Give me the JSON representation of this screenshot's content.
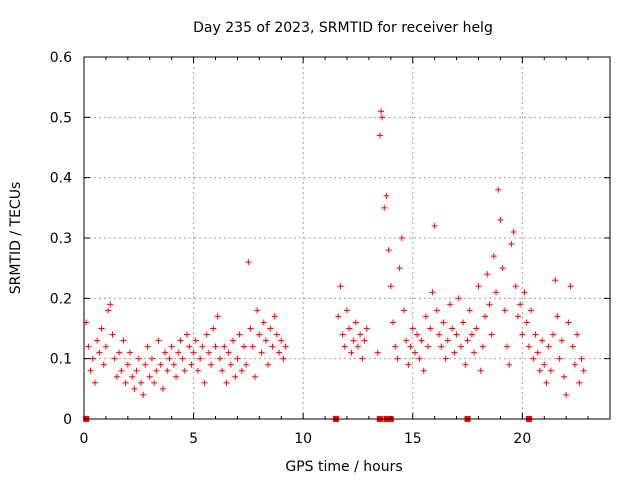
{
  "chart_data": {
    "type": "scatter",
    "title": "Day 235 of 2023, SRMTID for receiver helg",
    "xlabel": "GPS time / hours",
    "ylabel": "SRMTID / TECUs",
    "xlim": [
      0,
      24
    ],
    "ylim": [
      0,
      0.6
    ],
    "x_ticks": [
      0,
      5,
      10,
      15,
      20
    ],
    "x_tick_labels": [
      "0",
      "5",
      "10",
      "15",
      "20"
    ],
    "y_ticks": [
      0,
      0.1,
      0.2,
      0.3,
      0.4,
      0.5,
      0.6
    ],
    "y_tick_labels": [
      "0",
      "0.1",
      "0.2",
      "0.3",
      "0.4",
      "0.5",
      "0.6"
    ],
    "grid": true,
    "marker": "+",
    "color": "#ff0000",
    "series": [
      {
        "name": "SRMTID",
        "points": [
          [
            0.1,
            0.16
          ],
          [
            0.2,
            0.12
          ],
          [
            0.3,
            0.08
          ],
          [
            0.4,
            0.1
          ],
          [
            0.5,
            0.06
          ],
          [
            0.6,
            0.13
          ],
          [
            0.7,
            0.11
          ],
          [
            0.8,
            0.15
          ],
          [
            0.9,
            0.09
          ],
          [
            1.0,
            0.12
          ],
          [
            1.1,
            0.18
          ],
          [
            1.2,
            0.19
          ],
          [
            1.3,
            0.14
          ],
          [
            1.4,
            0.1
          ],
          [
            1.5,
            0.07
          ],
          [
            1.6,
            0.11
          ],
          [
            1.7,
            0.08
          ],
          [
            1.8,
            0.13
          ],
          [
            1.9,
            0.06
          ],
          [
            2.0,
            0.09
          ],
          [
            2.1,
            0.11
          ],
          [
            2.2,
            0.07
          ],
          [
            2.3,
            0.05
          ],
          [
            2.4,
            0.08
          ],
          [
            2.5,
            0.1
          ],
          [
            2.6,
            0.06
          ],
          [
            2.7,
            0.04
          ],
          [
            2.8,
            0.09
          ],
          [
            2.9,
            0.12
          ],
          [
            3.0,
            0.07
          ],
          [
            3.1,
            0.1
          ],
          [
            3.2,
            0.06
          ],
          [
            3.3,
            0.08
          ],
          [
            3.4,
            0.13
          ],
          [
            3.5,
            0.09
          ],
          [
            3.6,
            0.05
          ],
          [
            3.7,
            0.11
          ],
          [
            3.8,
            0.08
          ],
          [
            3.9,
            0.1
          ],
          [
            4.0,
            0.12
          ],
          [
            4.1,
            0.09
          ],
          [
            4.2,
            0.07
          ],
          [
            4.3,
            0.11
          ],
          [
            4.4,
            0.13
          ],
          [
            4.5,
            0.1
          ],
          [
            4.6,
            0.08
          ],
          [
            4.7,
            0.14
          ],
          [
            4.8,
            0.12
          ],
          [
            4.9,
            0.09
          ],
          [
            5.0,
            0.11
          ],
          [
            5.1,
            0.13
          ],
          [
            5.2,
            0.08
          ],
          [
            5.3,
            0.1
          ],
          [
            5.4,
            0.12
          ],
          [
            5.5,
            0.06
          ],
          [
            5.6,
            0.14
          ],
          [
            5.7,
            0.11
          ],
          [
            5.8,
            0.09
          ],
          [
            5.9,
            0.15
          ],
          [
            6.0,
            0.12
          ],
          [
            6.1,
            0.17
          ],
          [
            6.2,
            0.1
          ],
          [
            6.3,
            0.08
          ],
          [
            6.4,
            0.12
          ],
          [
            6.5,
            0.06
          ],
          [
            6.6,
            0.11
          ],
          [
            6.7,
            0.09
          ],
          [
            6.8,
            0.13
          ],
          [
            6.9,
            0.07
          ],
          [
            7.0,
            0.1
          ],
          [
            7.1,
            0.14
          ],
          [
            7.2,
            0.08
          ],
          [
            7.3,
            0.12
          ],
          [
            7.4,
            0.09
          ],
          [
            7.5,
            0.26
          ],
          [
            7.6,
            0.15
          ],
          [
            7.7,
            0.12
          ],
          [
            7.8,
            0.07
          ],
          [
            7.9,
            0.18
          ],
          [
            8.0,
            0.14
          ],
          [
            8.1,
            0.11
          ],
          [
            8.2,
            0.16
          ],
          [
            8.3,
            0.13
          ],
          [
            8.4,
            0.09
          ],
          [
            8.5,
            0.15
          ],
          [
            8.6,
            0.12
          ],
          [
            8.7,
            0.17
          ],
          [
            8.8,
            0.14
          ],
          [
            8.9,
            0.11
          ],
          [
            9.0,
            0.13
          ],
          [
            9.1,
            0.1
          ],
          [
            9.2,
            0.12
          ],
          [
            11.6,
            0.17
          ],
          [
            11.7,
            0.22
          ],
          [
            11.8,
            0.14
          ],
          [
            11.9,
            0.12
          ],
          [
            12.0,
            0.18
          ],
          [
            12.1,
            0.15
          ],
          [
            12.2,
            0.11
          ],
          [
            12.3,
            0.13
          ],
          [
            12.4,
            0.16
          ],
          [
            12.5,
            0.12
          ],
          [
            12.6,
            0.14
          ],
          [
            12.7,
            0.1
          ],
          [
            12.8,
            0.13
          ],
          [
            12.9,
            0.15
          ],
          [
            13.4,
            0.11
          ],
          [
            13.5,
            0.47
          ],
          [
            13.55,
            0.51
          ],
          [
            13.6,
            0.5
          ],
          [
            13.7,
            0.35
          ],
          [
            13.8,
            0.37
          ],
          [
            13.9,
            0.28
          ],
          [
            14.0,
            0.22
          ],
          [
            14.1,
            0.16
          ],
          [
            14.2,
            0.12
          ],
          [
            14.3,
            0.1
          ],
          [
            14.4,
            0.25
          ],
          [
            14.5,
            0.3
          ],
          [
            14.6,
            0.18
          ],
          [
            14.7,
            0.13
          ],
          [
            14.8,
            0.09
          ],
          [
            14.9,
            0.12
          ],
          [
            15.0,
            0.15
          ],
          [
            15.1,
            0.11
          ],
          [
            15.2,
            0.14
          ],
          [
            15.3,
            0.1
          ],
          [
            15.4,
            0.13
          ],
          [
            15.5,
            0.08
          ],
          [
            15.6,
            0.17
          ],
          [
            15.7,
            0.12
          ],
          [
            15.8,
            0.15
          ],
          [
            15.9,
            0.21
          ],
          [
            16.0,
            0.32
          ],
          [
            16.1,
            0.18
          ],
          [
            16.2,
            0.14
          ],
          [
            16.3,
            0.12
          ],
          [
            16.4,
            0.16
          ],
          [
            16.5,
            0.1
          ],
          [
            16.6,
            0.13
          ],
          [
            16.7,
            0.19
          ],
          [
            16.8,
            0.15
          ],
          [
            16.9,
            0.11
          ],
          [
            17.0,
            0.14
          ],
          [
            17.1,
            0.2
          ],
          [
            17.2,
            0.12
          ],
          [
            17.3,
            0.16
          ],
          [
            17.4,
            0.09
          ],
          [
            17.5,
            0.13
          ],
          [
            17.6,
            0.18
          ],
          [
            17.7,
            0.14
          ],
          [
            17.8,
            0.11
          ],
          [
            17.9,
            0.15
          ],
          [
            18.0,
            0.22
          ],
          [
            18.1,
            0.08
          ],
          [
            18.2,
            0.12
          ],
          [
            18.3,
            0.17
          ],
          [
            18.4,
            0.24
          ],
          [
            18.5,
            0.19
          ],
          [
            18.6,
            0.14
          ],
          [
            18.7,
            0.27
          ],
          [
            18.8,
            0.21
          ],
          [
            18.9,
            0.38
          ],
          [
            19.0,
            0.33
          ],
          [
            19.1,
            0.25
          ],
          [
            19.2,
            0.18
          ],
          [
            19.3,
            0.12
          ],
          [
            19.4,
            0.09
          ],
          [
            19.5,
            0.29
          ],
          [
            19.6,
            0.31
          ],
          [
            19.7,
            0.22
          ],
          [
            19.8,
            0.17
          ],
          [
            19.9,
            0.19
          ],
          [
            20.0,
            0.14
          ],
          [
            20.1,
            0.21
          ],
          [
            20.2,
            0.16
          ],
          [
            20.3,
            0.12
          ],
          [
            20.4,
            0.18
          ],
          [
            20.5,
            0.1
          ],
          [
            20.6,
            0.14
          ],
          [
            20.7,
            0.11
          ],
          [
            20.8,
            0.08
          ],
          [
            20.9,
            0.13
          ],
          [
            21.0,
            0.09
          ],
          [
            21.1,
            0.06
          ],
          [
            21.2,
            0.12
          ],
          [
            21.3,
            0.08
          ],
          [
            21.4,
            0.14
          ],
          [
            21.5,
            0.23
          ],
          [
            21.6,
            0.17
          ],
          [
            21.7,
            0.1
          ],
          [
            21.8,
            0.13
          ],
          [
            21.9,
            0.07
          ],
          [
            22.0,
            0.04
          ],
          [
            22.1,
            0.16
          ],
          [
            22.2,
            0.22
          ],
          [
            22.3,
            0.12
          ],
          [
            22.4,
            0.09
          ],
          [
            22.5,
            0.14
          ],
          [
            22.6,
            0.06
          ],
          [
            22.7,
            0.1
          ],
          [
            22.8,
            0.08
          ]
        ]
      }
    ],
    "zero_markers_x": [
      0.1,
      11.5,
      13.5,
      13.8,
      14.0,
      17.5,
      20.3
    ]
  }
}
